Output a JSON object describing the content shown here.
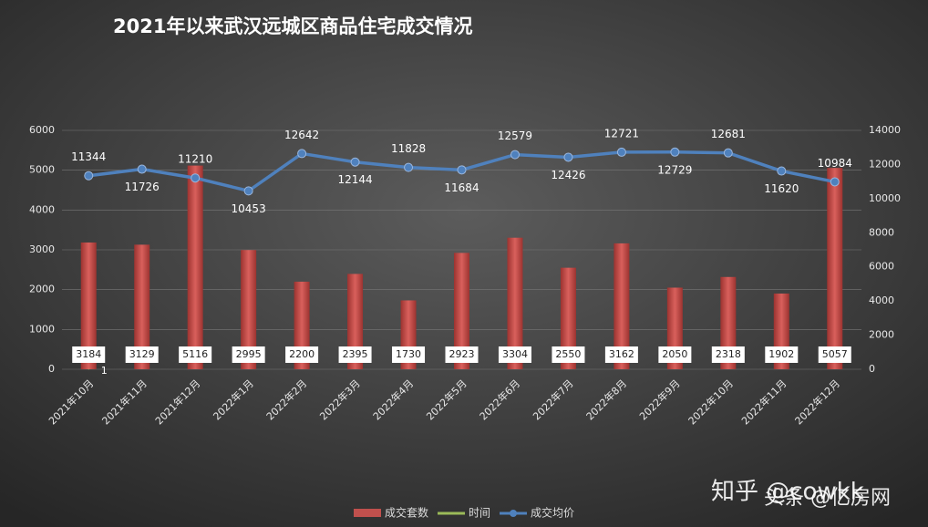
{
  "chart_data": {
    "type": "bar_line",
    "title": "2021年以来武汉远城区商品住宅成交情况",
    "categories": [
      "2021年10月",
      "2021年11月",
      "2021年12月",
      "2022年1月",
      "2022年2月",
      "2022年3月",
      "2022年4月",
      "2022年5月",
      "2022年6月",
      "2022年7月",
      "2022年8月",
      "2022年9月",
      "2022年10月",
      "2022年11月",
      "2022年12月"
    ],
    "series": [
      {
        "name": "成交套数",
        "color": "#c0504d",
        "type": "bar",
        "values": [
          3184,
          3129,
          5116,
          2995,
          2200,
          2395,
          1730,
          2923,
          3304,
          2550,
          3162,
          2050,
          2318,
          1902,
          5057
        ]
      },
      {
        "name": "时间",
        "color": "#9bbb59",
        "type": "line",
        "values": [
          1,
          null,
          null,
          null,
          null,
          null,
          null,
          null,
          null,
          null,
          null,
          null,
          null,
          null,
          null
        ]
      },
      {
        "name": "成交均价",
        "color": "#4f81bd",
        "type": "line",
        "axis": "y2",
        "values": [
          11344,
          11726,
          11210,
          10453,
          12642,
          12144,
          11828,
          11684,
          12579,
          12426,
          12721,
          12729,
          12681,
          11620,
          10984
        ]
      }
    ],
    "ylim": [
      0,
      6000
    ],
    "yticks": [
      0,
      1000,
      2000,
      3000,
      4000,
      5000,
      6000
    ],
    "y2lim": [
      0,
      14000
    ],
    "y2ticks": [
      0,
      2000,
      4000,
      6000,
      8000,
      10000,
      12000,
      14000
    ],
    "grid": true,
    "legend": "bottom",
    "watermarks": [
      "知乎 @cowkk",
      "头条 @亿房网"
    ]
  }
}
